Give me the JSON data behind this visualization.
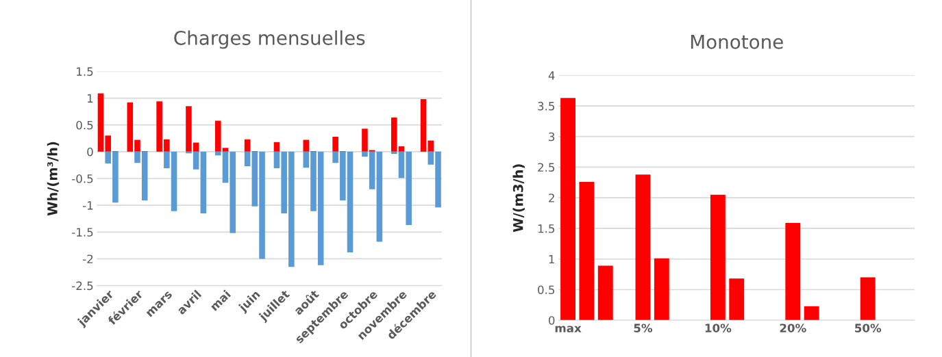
{
  "chart_data": [
    {
      "type": "bar",
      "title": "Charges mensuelles",
      "ylabel": "Wh/(m³/h)",
      "grid": "y",
      "legend": false,
      "categories": [
        null,
        "janvier",
        null,
        null,
        null,
        "février",
        null,
        null,
        null,
        "mars",
        null,
        null,
        null,
        "avril",
        null,
        null,
        null,
        "mai",
        null,
        null,
        null,
        "juin",
        null,
        null,
        null,
        "juillet",
        null,
        null,
        null,
        "août",
        null,
        null,
        null,
        "septembre",
        null,
        null,
        null,
        "octobre",
        null,
        null,
        null,
        "novembre",
        null,
        null,
        null,
        "décembre",
        null
      ],
      "series": [
        {
          "color": "#ff0000",
          "values": [
            1.09,
            0.3,
            0.01,
            null,
            0.92,
            0.22,
            0.01,
            null,
            0.94,
            0.23,
            0,
            null,
            0.85,
            0.17,
            0,
            null,
            0.58,
            0.07,
            0,
            null,
            0.23,
            0.01,
            0,
            null,
            0.18,
            0,
            0,
            null,
            0.22,
            0.01,
            0,
            null,
            0.28,
            0.01,
            0,
            null,
            0.43,
            0.03,
            0,
            null,
            0.64,
            0.1,
            0,
            null,
            0.98,
            0.21,
            0
          ]
        },
        {
          "color": "#5b9bd5",
          "values": [
            0,
            -0.22,
            -0.95,
            null,
            0,
            -0.21,
            -0.91,
            null,
            0,
            -0.31,
            -1.11,
            null,
            -0.03,
            -0.33,
            -1.15,
            null,
            -0.07,
            -0.58,
            -1.52,
            null,
            -0.27,
            -1.02,
            -2.0,
            null,
            -0.31,
            -1.15,
            -2.15,
            null,
            -0.3,
            -1.11,
            -2.12,
            null,
            -0.21,
            -0.91,
            -1.88,
            null,
            -0.09,
            -0.7,
            -1.68,
            null,
            -0.04,
            -0.49,
            -1.37,
            null,
            0,
            -0.24,
            -1.04
          ]
        }
      ],
      "ylim": [
        -2.5,
        1.5
      ],
      "yticks": [
        -2.5,
        -2,
        -1.5,
        -1,
        -0.5,
        0,
        0.5,
        1,
        1.5
      ]
    },
    {
      "type": "bar",
      "title": "Monotone",
      "ylabel": "W/(m3/h)",
      "grid": "y",
      "legend": false,
      "categories": [
        "max",
        null,
        null,
        null,
        "5%",
        null,
        null,
        null,
        "10%",
        null,
        null,
        null,
        "20%",
        null,
        null,
        null,
        "50%",
        null,
        null
      ],
      "series": [
        {
          "color": "#ff0000",
          "values": [
            3.63,
            2.26,
            0.89,
            null,
            2.38,
            1.01,
            null,
            null,
            2.05,
            0.68,
            null,
            null,
            1.59,
            0.23,
            null,
            null,
            0.7,
            null,
            null
          ]
        }
      ],
      "ylim": [
        0,
        4
      ],
      "yticks": [
        0,
        0.5,
        1,
        1.5,
        2,
        2.5,
        3,
        3.5,
        4
      ]
    }
  ]
}
